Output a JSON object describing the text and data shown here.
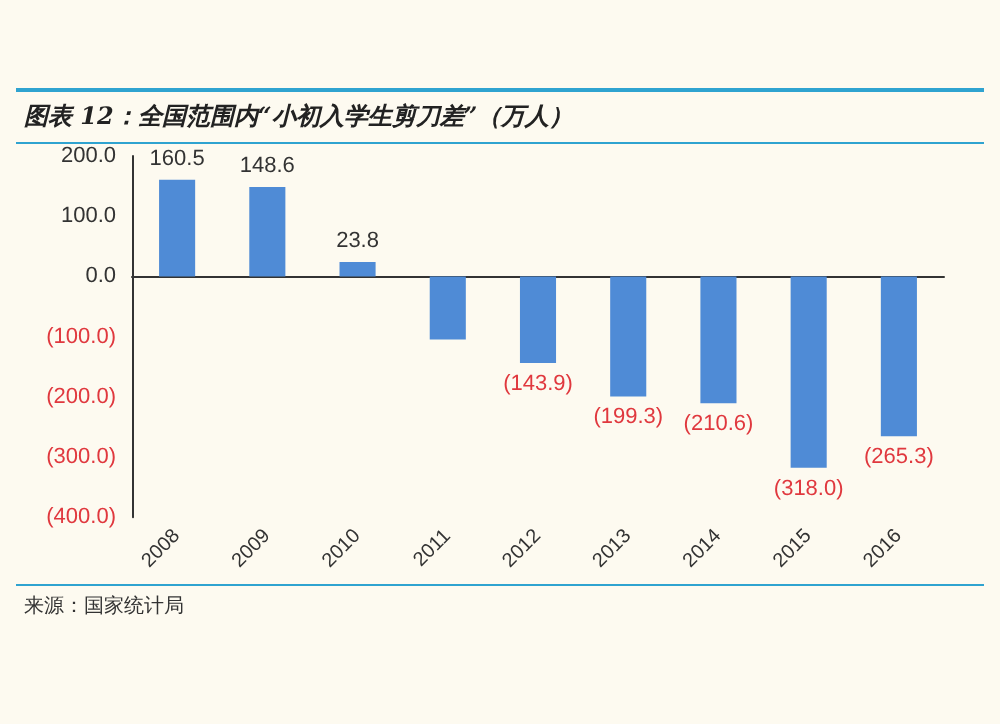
{
  "chart_data": {
    "type": "bar",
    "title": "图表 12：全国范围内“小初入学生剪刀差”（万人）",
    "categories": [
      "2008",
      "2009",
      "2010",
      "2011",
      "2012",
      "2013",
      "2014",
      "2015",
      "2016"
    ],
    "values": [
      160.5,
      148.6,
      23.8,
      -105,
      -143.9,
      -199.3,
      -210.6,
      -318.0,
      -265.3
    ],
    "value_labels": [
      "160.5",
      "148.6",
      "23.8",
      null,
      "(143.9)",
      "(199.3)",
      "(210.6)",
      "(318.0)",
      "(265.3)"
    ],
    "color": "#4f8bd6",
    "ylim": [
      -400,
      200
    ],
    "yticks": [
      {
        "value": -400,
        "label": "(400.0)"
      },
      {
        "value": -300,
        "label": "(300.0)"
      },
      {
        "value": -200,
        "label": "(200.0)"
      },
      {
        "value": -100,
        "label": "(100.0)"
      },
      {
        "value": 0,
        "label": "0.0"
      },
      {
        "value": 100,
        "label": "100.0"
      },
      {
        "value": 200,
        "label": "200.0"
      }
    ],
    "annotations": [
      "来源：国家统计局"
    ]
  }
}
